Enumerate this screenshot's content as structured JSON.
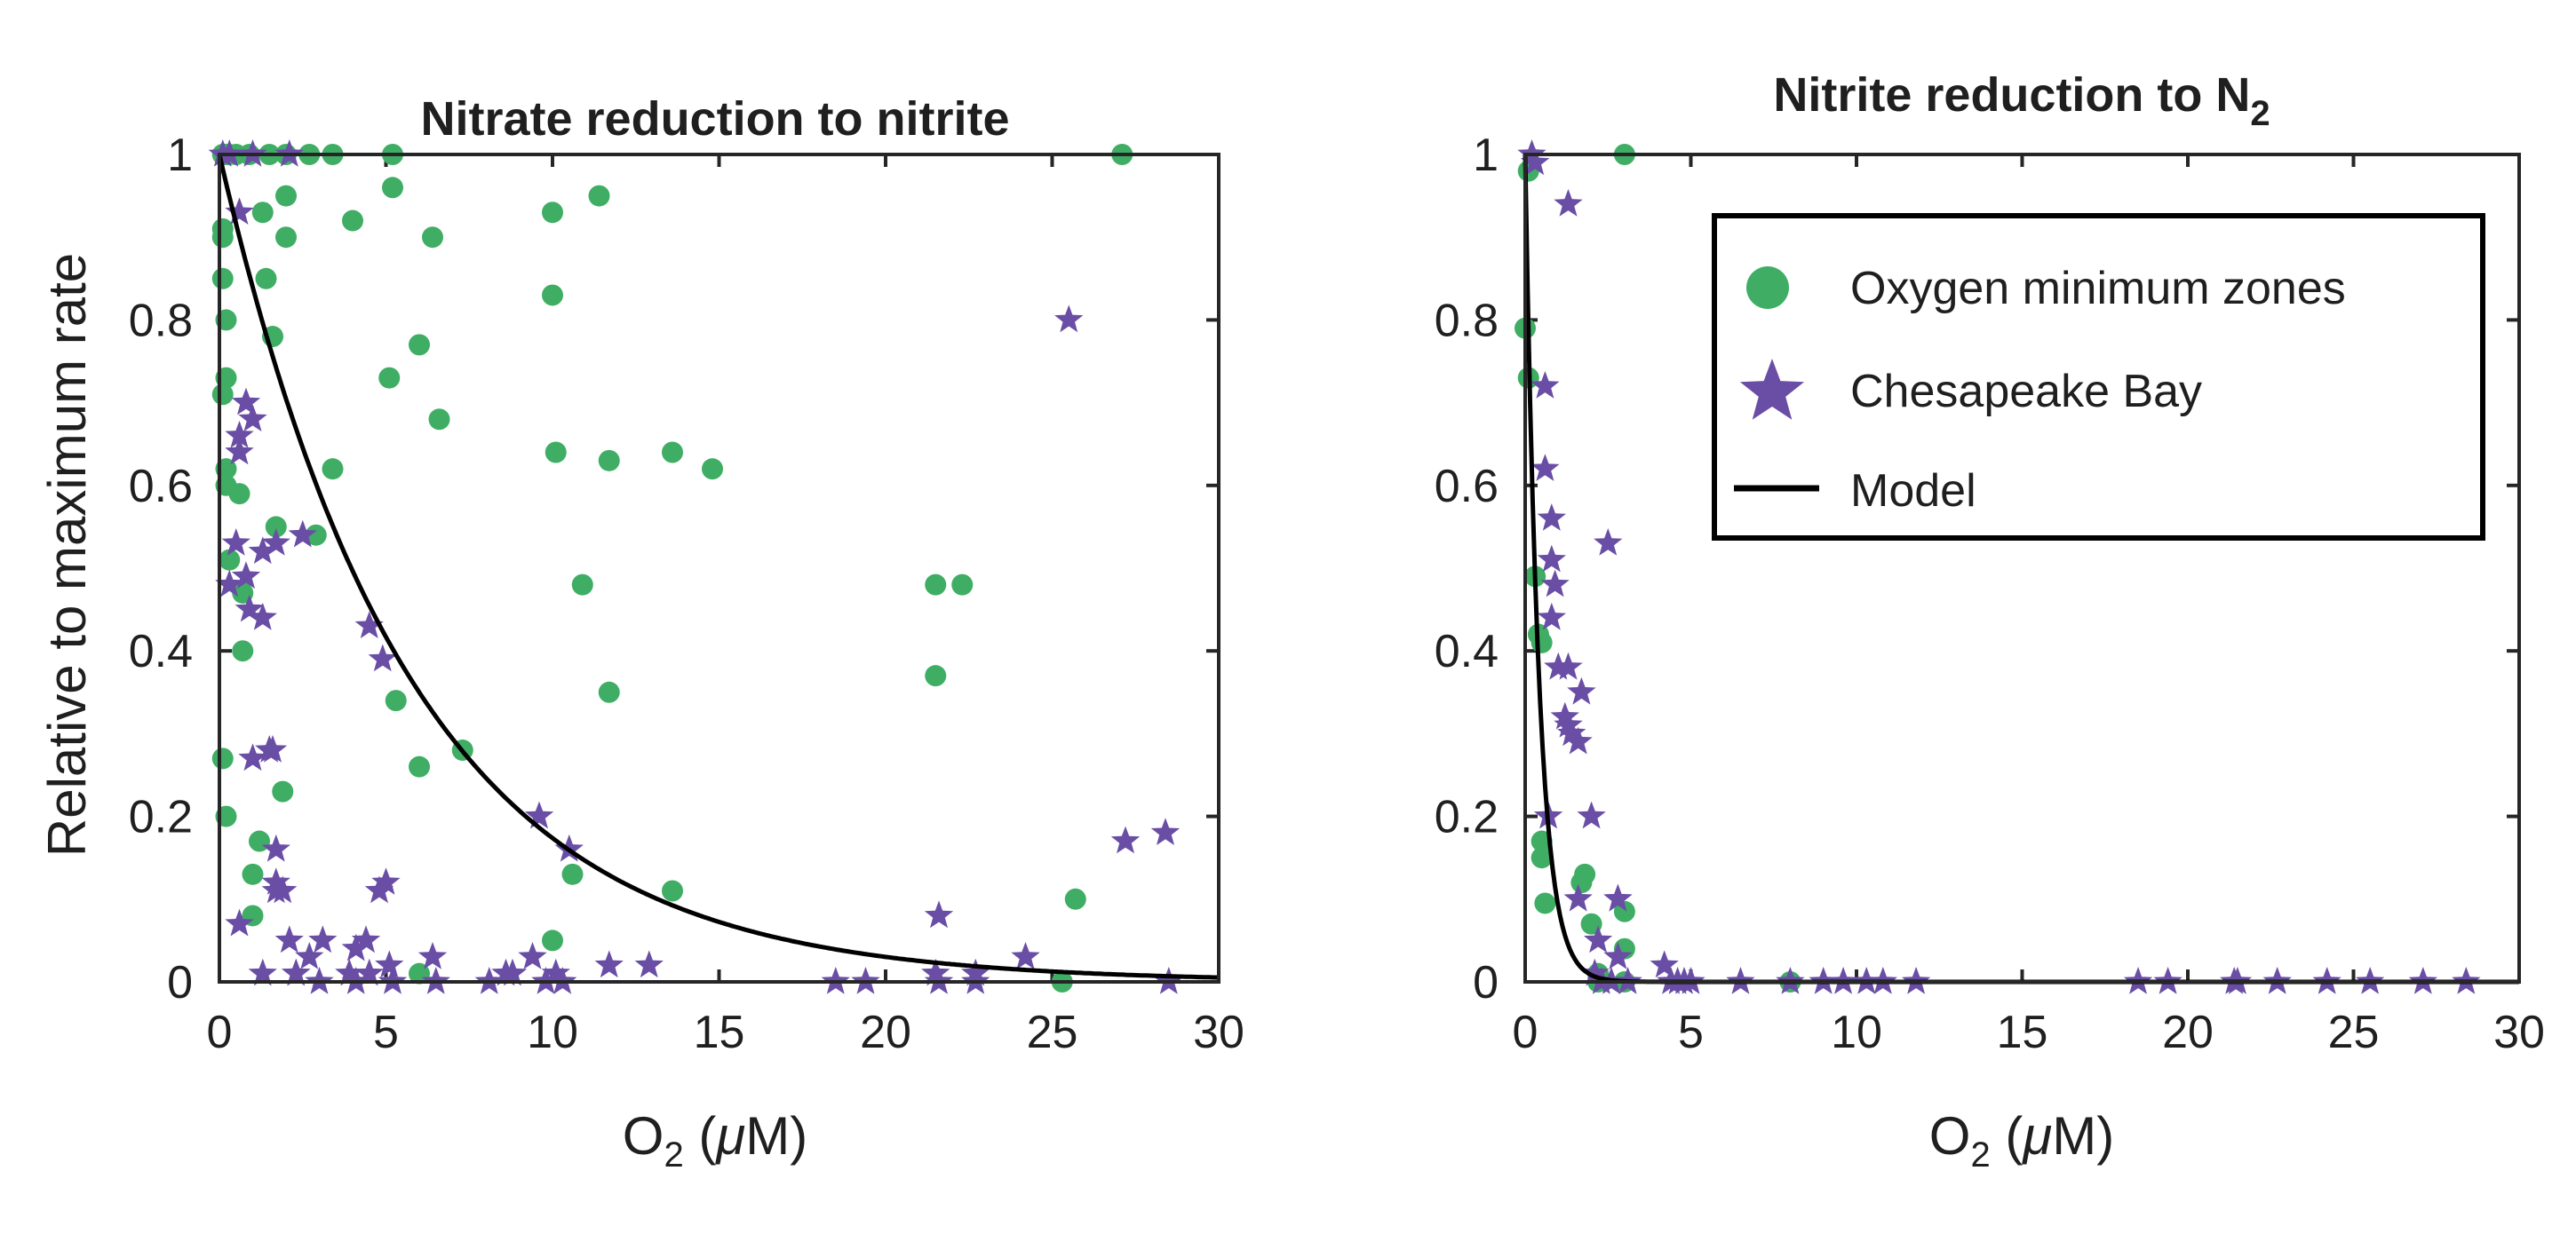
{
  "colors": {
    "omz": "#3fae64",
    "bay": "#6a4ea6",
    "model": "#000000",
    "axis": "#262626"
  },
  "legend": {
    "omz_label": "Oxygen minimum zones",
    "bay_label": "Chesapeake Bay",
    "model_label": "Model"
  },
  "chart_data": [
    {
      "type": "scatter",
      "title": "Nitrate reduction to nitrite",
      "xlabel": "O2 (μM)",
      "ylabel": "Relative to maximum rate",
      "xlim": [
        0,
        30
      ],
      "ylim": [
        0,
        1
      ],
      "xticks": [
        "0",
        "5",
        "10",
        "15",
        "20",
        "25",
        "30"
      ],
      "yticks": [
        "0",
        "0.2",
        "0.4",
        "0.6",
        "0.8",
        "1"
      ],
      "model": {
        "form": "exp",
        "k": 0.175
      },
      "series": [
        {
          "name": "Oxygen minimum zones",
          "marker": "circle",
          "x": [
            0.1,
            0.2,
            0.3,
            0.5,
            0.9,
            1.5,
            2,
            2.7,
            3.4,
            5.2,
            0.1,
            0.1,
            0.1,
            0.2,
            0.2,
            0.1,
            0.2,
            0.2,
            0.3,
            0.6,
            0.7,
            0.7,
            1.3,
            1.4,
            1.6,
            1.7,
            2.0,
            2.0,
            2.9,
            3.4,
            4.0,
            5.1,
            5.2,
            6.0,
            6.4,
            6.6,
            10.0,
            10.0,
            11.4,
            10.1,
            11.7,
            13.6,
            14.8,
            10.9,
            21.5,
            22.3,
            21.5,
            11.7,
            5.3,
            6.0,
            7.3,
            1.9,
            1.2,
            1.0,
            1.0,
            13.6,
            10.0,
            10.6,
            6.0,
            25.3,
            25.7,
            27.1,
            0.1,
            0.2
          ],
          "y": [
            1,
            1,
            1,
            1,
            1,
            1,
            1,
            1,
            1,
            1,
            0.91,
            0.9,
            0.85,
            0.8,
            0.73,
            0.71,
            0.62,
            0.6,
            0.51,
            0.59,
            0.47,
            0.4,
            0.93,
            0.85,
            0.78,
            0.55,
            0.95,
            0.9,
            0.54,
            0.62,
            0.92,
            0.73,
            0.96,
            0.77,
            0.9,
            0.68,
            0.93,
            0.83,
            0.95,
            0.64,
            0.63,
            0.64,
            0.62,
            0.48,
            0.48,
            0.48,
            0.37,
            0.35,
            0.34,
            0.26,
            0.28,
            0.23,
            0.17,
            0.13,
            0.08,
            0.11,
            0.05,
            0.13,
            0.01,
            0.0,
            0.1,
            1,
            0.27,
            0.2
          ]
        },
        {
          "name": "Chesapeake Bay",
          "marker": "star",
          "x": [
            0.1,
            0.3,
            1.0,
            2.1,
            0.6,
            0.8,
            1.0,
            0.6,
            0.6,
            2.5,
            1.7,
            1.3,
            0.5,
            0.8,
            0.9,
            1.3,
            1.0,
            1.6,
            4.5,
            4.9,
            2.3,
            2.1,
            1.7,
            1.7,
            1.7,
            1.9,
            2.7,
            3.1,
            4.1,
            4.4,
            5.0,
            4.8,
            4.5,
            5.1,
            6.4,
            3.9,
            9.6,
            10.1,
            10.5,
            11.7,
            12.9,
            9.4,
            8.8,
            8.1,
            8.6,
            9.8,
            18.5,
            19.4,
            21.5,
            21.6,
            21.6,
            22.7,
            22.7,
            24.2,
            25.5,
            27.2,
            28.4,
            28.5,
            0.6,
            0.3,
            1.3,
            1.5,
            2.3,
            3.0,
            4.1,
            5.2,
            6.5,
            10.3
          ],
          "y": [
            1,
            1,
            1,
            1,
            0.93,
            0.7,
            0.68,
            0.66,
            0.64,
            0.54,
            0.53,
            0.52,
            0.53,
            0.49,
            0.45,
            0.44,
            0.27,
            0.28,
            0.43,
            0.39,
            0.01,
            0.05,
            0.12,
            0.11,
            0.16,
            0.11,
            0.03,
            0.05,
            0.04,
            0.05,
            0.12,
            0.11,
            0.01,
            0.02,
            0.03,
            0.01,
            0.2,
            0.01,
            0.16,
            0.02,
            0.02,
            0.03,
            0.01,
            0.0,
            0.01,
            0.0,
            0.0,
            0.0,
            0.01,
            0.0,
            0.08,
            0.01,
            0.0,
            0.03,
            0.8,
            0.17,
            0.18,
            0.0,
            0.07,
            0.48,
            0.01,
            0.28,
            0.01,
            0.0,
            0.0,
            0.0,
            0.0,
            0.0
          ]
        }
      ]
    },
    {
      "type": "scatter",
      "title": "Nitrite reduction to N",
      "title_subscript": "2",
      "xlabel": "O2 (μM)",
      "xlim": [
        0,
        30
      ],
      "ylim": [
        0,
        1
      ],
      "xticks": [
        "0",
        "5",
        "10",
        "15",
        "20",
        "25",
        "30"
      ],
      "yticks": [
        "0",
        "0.2",
        "0.4",
        "0.6",
        "0.8",
        "1"
      ],
      "model": {
        "form": "exp",
        "k": 2.4
      },
      "series": [
        {
          "name": "Oxygen minimum zones",
          "marker": "circle",
          "x": [
            0.1,
            0.0,
            0.1,
            0.3,
            0.4,
            0.5,
            0.5,
            0.5,
            0.6,
            1.7,
            1.8,
            2.0,
            2.2,
            2.2,
            3.0,
            3.0,
            3.0,
            3.0,
            8.0
          ],
          "y": [
            0.98,
            0.79,
            0.73,
            0.49,
            0.42,
            0.41,
            0.17,
            0.15,
            0.095,
            0.12,
            0.13,
            0.07,
            0.01,
            0.0,
            0.085,
            0.04,
            0.0,
            1,
            0.0
          ],
          "extra_note": ""
        },
        {
          "name": "Chesapeake Bay",
          "marker": "star",
          "x": [
            0.2,
            0.3,
            1.3,
            0.6,
            0.6,
            0.8,
            0.8,
            0.9,
            0.8,
            2.5,
            1.0,
            1.3,
            1.7,
            1.2,
            1.4,
            1.3,
            1.6,
            0.7,
            1.6,
            2.0,
            2.8,
            2.8,
            2.8,
            2.2,
            2.1,
            2.3,
            2.6,
            3.1,
            4.2,
            4.4,
            4.8,
            4.6,
            5.0,
            6.5,
            8.0,
            9.0,
            9.6,
            10.3,
            10.8,
            11.8,
            18.5,
            19.4,
            21.4,
            21.5,
            22.7,
            24.2,
            25.5,
            27.1,
            28.4
          ],
          "y": [
            1,
            0.99,
            0.94,
            0.72,
            0.62,
            0.56,
            0.51,
            0.48,
            0.44,
            0.53,
            0.38,
            0.38,
            0.35,
            0.32,
            0.3,
            0.31,
            0.29,
            0.2,
            0.1,
            0.2,
            0.1,
            0.1,
            0.03,
            0.05,
            0.01,
            0.0,
            0.0,
            0.0,
            0.02,
            0.0,
            0.0,
            0.0,
            0.0,
            0.0,
            0.0,
            0.0,
            0.0,
            0.0,
            0.0,
            0.0,
            0.0,
            0.0,
            0.0,
            0.0,
            0.0,
            0.0,
            0.0,
            0.0,
            0.0
          ]
        }
      ]
    }
  ]
}
